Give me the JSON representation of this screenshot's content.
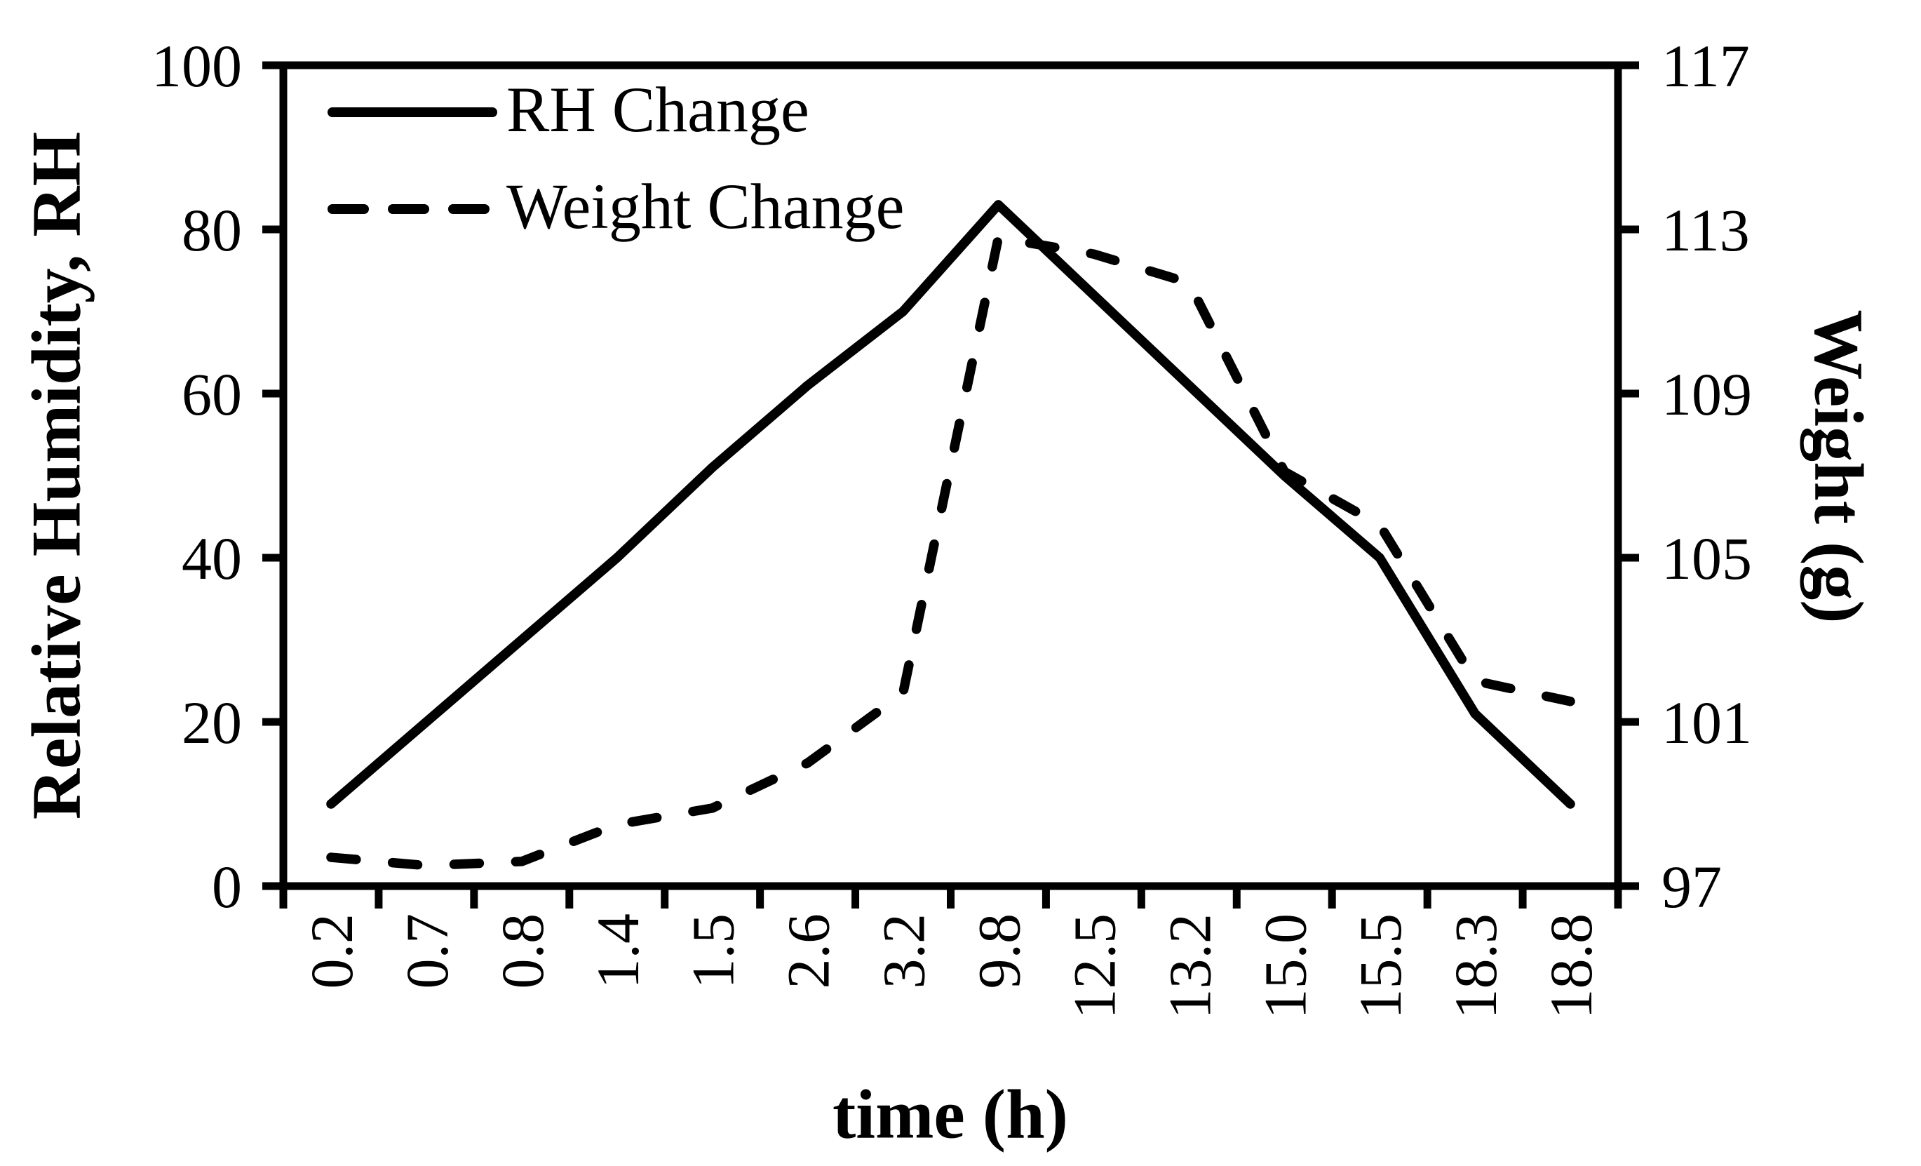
{
  "chart_data": {
    "type": "line",
    "title": "",
    "xlabel": "time (h)",
    "ylabel_left": "Relative Humidity, RH",
    "ylabel_right": "Weight (g)",
    "categories": [
      "0.2",
      "0.7",
      "0.8",
      "1.4",
      "1.5",
      "2.6",
      "3.2",
      "9.8",
      "12.5",
      "13.2",
      "15.0",
      "15.5",
      "18.3",
      "18.8"
    ],
    "left_axis": {
      "min": 0,
      "max": 100,
      "ticks": [
        0,
        20,
        40,
        60,
        80,
        100
      ],
      "tick_labels": [
        "0",
        "20",
        "40",
        "60",
        "80",
        "100"
      ]
    },
    "right_axis": {
      "min": 97,
      "max": 117,
      "ticks": [
        97,
        101,
        105,
        109,
        113,
        117
      ],
      "tick_labels": [
        "97",
        "101",
        "105",
        "109",
        "113",
        "117"
      ]
    },
    "series": [
      {
        "name": "RH Change",
        "axis": "left",
        "line_style": "solid",
        "color": "#000000",
        "values": [
          10,
          20,
          30,
          40,
          51,
          61,
          70,
          83,
          72,
          61,
          50,
          40,
          21,
          10
        ]
      },
      {
        "name": "Weight Change",
        "axis": "right",
        "line_style": "dashed",
        "color": "#000000",
        "values": [
          97.7,
          97.5,
          97.6,
          98.5,
          98.9,
          100.0,
          101.7,
          112.8,
          112.4,
          111.7,
          107.1,
          105.8,
          102.0,
          101.5
        ]
      }
    ],
    "legend_position": "top-left-inside",
    "grid": false,
    "background": "#ffffff",
    "axis_color": "#000000"
  }
}
